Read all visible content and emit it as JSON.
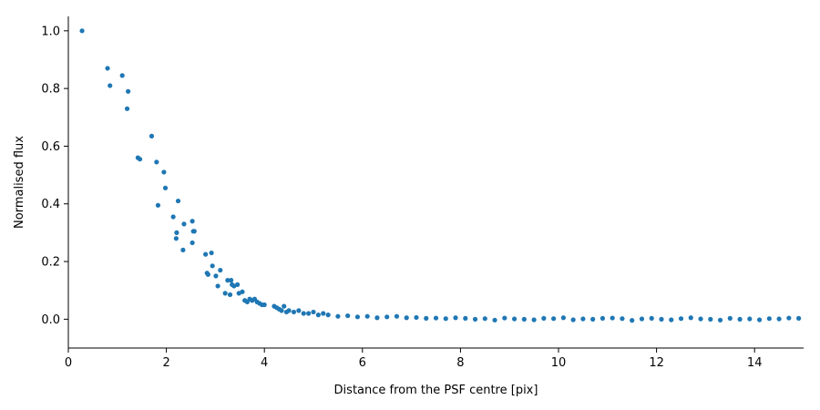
{
  "chart_data": {
    "type": "scatter",
    "title": "",
    "xlabel": "Distance from the PSF centre [pix]",
    "ylabel": "Normalised flux",
    "xlim": [
      0,
      15
    ],
    "ylim": [
      -0.1,
      1.05
    ],
    "xticks": [
      0,
      2,
      4,
      6,
      8,
      10,
      12,
      14
    ],
    "yticks": [
      0.0,
      0.2,
      0.4,
      0.6,
      0.8,
      1.0
    ],
    "xtick_labels": [
      "0",
      "2",
      "4",
      "6",
      "8",
      "10",
      "12",
      "14"
    ],
    "ytick_labels": [
      "0.0",
      "0.2",
      "0.4",
      "0.6",
      "0.8",
      "1.0"
    ],
    "grid": false,
    "spines": [
      "left",
      "bottom"
    ],
    "marker_color": "#1f77b4",
    "series": [
      {
        "x": [
          0.28,
          0.8,
          0.85,
          1.1,
          1.2,
          1.22,
          1.42,
          1.46,
          1.7,
          1.8,
          1.83,
          1.95,
          1.98,
          2.14,
          2.2,
          2.21,
          2.24,
          2.34,
          2.36,
          2.53,
          2.53,
          2.55,
          2.57,
          2.8,
          2.83,
          2.85,
          2.92,
          2.94,
          3.01,
          3.05,
          3.1,
          3.2,
          3.25,
          3.3,
          3.32,
          3.34,
          3.38,
          3.45,
          3.48,
          3.55,
          3.6,
          3.65,
          3.7,
          3.75,
          3.8,
          3.85,
          3.9,
          3.95,
          4.0,
          4.2,
          4.25,
          4.3,
          4.35,
          4.4,
          4.45,
          4.5,
          4.6,
          4.7,
          4.8,
          4.9,
          5.0,
          5.1,
          5.2,
          5.3,
          5.5,
          5.7,
          5.9,
          6.1,
          6.3,
          6.5,
          6.7,
          6.9,
          7.1,
          7.3,
          7.5,
          7.7,
          7.9,
          8.1,
          8.3,
          8.5,
          8.7,
          8.9,
          9.1,
          9.3,
          9.5,
          9.7,
          9.9,
          10.1,
          10.3,
          10.5,
          10.7,
          10.9,
          11.1,
          11.3,
          11.5,
          11.7,
          11.9,
          12.1,
          12.3,
          12.5,
          12.7,
          12.9,
          13.1,
          13.3,
          13.5,
          13.7,
          13.9,
          14.1,
          14.3,
          14.5,
          14.7,
          14.9
        ],
        "y": [
          1.0,
          0.87,
          0.81,
          0.845,
          0.73,
          0.79,
          0.56,
          0.555,
          0.635,
          0.545,
          0.395,
          0.51,
          0.455,
          0.355,
          0.28,
          0.3,
          0.41,
          0.24,
          0.33,
          0.34,
          0.265,
          0.305,
          0.305,
          0.225,
          0.16,
          0.155,
          0.23,
          0.185,
          0.15,
          0.115,
          0.17,
          0.09,
          0.135,
          0.085,
          0.135,
          0.12,
          0.115,
          0.12,
          0.09,
          0.095,
          0.065,
          0.06,
          0.07,
          0.065,
          0.07,
          0.06,
          0.055,
          0.05,
          0.05,
          0.045,
          0.04,
          0.035,
          0.03,
          0.045,
          0.025,
          0.03,
          0.025,
          0.03,
          0.02,
          0.02,
          0.025,
          0.015,
          0.02,
          0.015,
          0.01,
          0.012,
          0.008,
          0.01,
          0.005,
          0.008,
          0.01,
          0.005,
          0.006,
          0.003,
          0.004,
          0.002,
          0.005,
          0.003,
          0.0,
          0.002,
          -0.003,
          0.004,
          0.001,
          0.0,
          -0.002,
          0.003,
          0.002,
          0.005,
          -0.002,
          0.001,
          0.0,
          0.003,
          0.004,
          0.002,
          -0.004,
          0.001,
          0.003,
          0.0,
          -0.002,
          0.002,
          0.005,
          0.001,
          0.0,
          -0.003,
          0.003,
          0.0,
          0.001,
          -0.002,
          0.002,
          0.001,
          0.004,
          0.003
        ]
      }
    ]
  }
}
